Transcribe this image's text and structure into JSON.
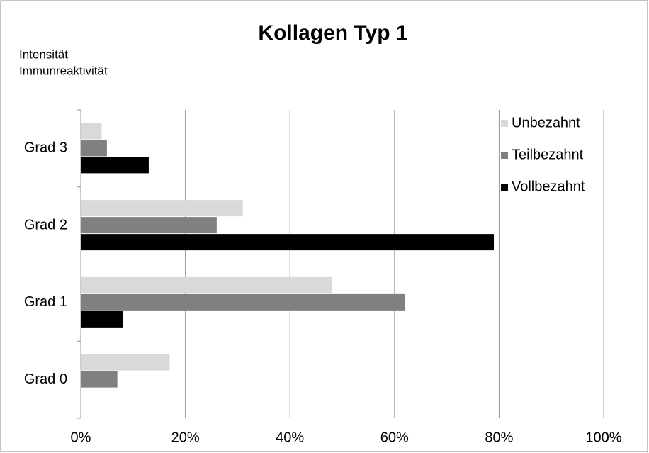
{
  "chart_data": {
    "type": "hbar",
    "title": "Kollagen Typ 1",
    "ylabel": [
      "Intensität",
      "Immunreaktivität"
    ],
    "categories": [
      "Grad 0",
      "Grad 1",
      "Grad 2",
      "Grad 3"
    ],
    "series": [
      {
        "name": "Unbezahnt",
        "color": "#d9d9d9",
        "values": [
          17,
          48,
          31,
          4
        ]
      },
      {
        "name": "Teilbezahnt",
        "color": "#808080",
        "values": [
          7,
          62,
          26,
          5
        ]
      },
      {
        "name": "Vollbezahnt",
        "color": "#000000",
        "values": [
          0,
          8,
          79,
          13
        ]
      }
    ],
    "xlim": [
      0,
      100
    ],
    "xticks": [
      {
        "value": 0,
        "label": "0%"
      },
      {
        "value": 20,
        "label": "20%"
      },
      {
        "value": 40,
        "label": "40%"
      },
      {
        "value": 60,
        "label": "60%"
      },
      {
        "value": 80,
        "label": "80%"
      },
      {
        "value": 100,
        "label": "100%"
      }
    ],
    "grid": true,
    "legend": "upper right"
  }
}
